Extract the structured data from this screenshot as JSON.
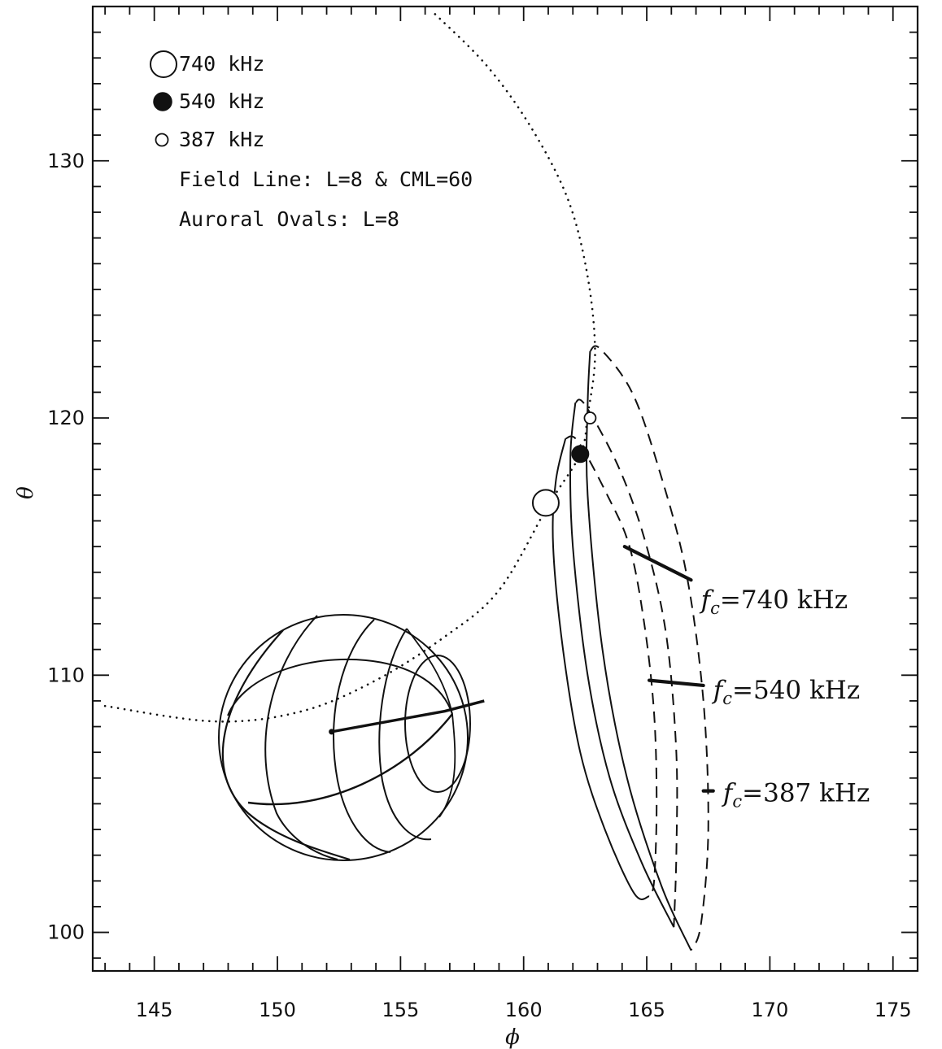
{
  "chart_data": {
    "type": "line",
    "title": "",
    "xlabel": "ϕ",
    "ylabel": "θ",
    "xlim": [
      142.5,
      176
    ],
    "ylim": [
      98.5,
      136
    ],
    "x_ticks": [
      145,
      150,
      155,
      160,
      165,
      170,
      175
    ],
    "y_ticks": [
      100,
      110,
      120,
      130
    ],
    "grid": false,
    "legend_position": "top-left",
    "legend": [
      {
        "marker": "large-open-circle",
        "label": "740 kHz"
      },
      {
        "marker": "filled-circle",
        "label": "540 kHz"
      },
      {
        "marker": "small-open-circle",
        "label": "387 kHz"
      }
    ],
    "notes": [
      "Field Line: L=8 & CML=60",
      "Auroral Ovals: L=8"
    ],
    "field_line": {
      "style": "dotted",
      "points": [
        [
          143,
          108.8
        ],
        [
          147.5,
          108.2
        ],
        [
          151,
          108.6
        ],
        [
          154,
          109.8
        ],
        [
          156.8,
          111.5
        ],
        [
          159,
          113.3
        ],
        [
          161,
          116.6
        ],
        [
          162.3,
          118.6
        ],
        [
          162.6,
          120.1
        ],
        [
          162.9,
          122.5
        ],
        [
          162.6,
          125.5
        ],
        [
          161.8,
          128.5
        ],
        [
          160.3,
          131.3
        ],
        [
          158.5,
          133.7
        ],
        [
          156.3,
          135.8
        ]
      ]
    },
    "markers": [
      {
        "freq": "740 kHz",
        "type": "large-open-circle",
        "x": 160.9,
        "y": 116.7
      },
      {
        "freq": "540 kHz",
        "type": "filled-circle",
        "x": 162.3,
        "y": 118.6
      },
      {
        "freq": "387 kHz",
        "type": "small-open-circle",
        "x": 162.7,
        "y": 120.0
      }
    ],
    "auroral_ovals": [
      {
        "label_prefix": "f",
        "label_sub": "c",
        "label_rest": "=740 kHz",
        "tip": [
          161.7,
          119.2
        ],
        "solid": [
          [
            161.7,
            119.2
          ],
          [
            161.3,
            117.5
          ],
          [
            161.2,
            115
          ],
          [
            161.6,
            111
          ],
          [
            162.3,
            107
          ],
          [
            163.3,
            104
          ],
          [
            164.5,
            101.5
          ],
          [
            165.1,
            101.4
          ]
        ],
        "dashed": [
          [
            162.2,
            119.1
          ],
          [
            163.4,
            117
          ],
          [
            164.3,
            115
          ],
          [
            164.9,
            112
          ],
          [
            165.3,
            108.5
          ],
          [
            165.4,
            105
          ],
          [
            165.3,
            102
          ],
          [
            165.1,
            101.4
          ]
        ],
        "bar": [
          [
            164.1,
            115.0
          ],
          [
            166.8,
            113.7
          ]
        ],
        "label_pos": [
          167.2,
          112.6
        ]
      },
      {
        "label_prefix": "f",
        "label_sub": "c",
        "label_rest": "=540 kHz",
        "tip": [
          162.1,
          120.6
        ],
        "solid": [
          [
            162.1,
            120.6
          ],
          [
            161.9,
            118.5
          ],
          [
            162.0,
            115
          ],
          [
            162.6,
            110
          ],
          [
            163.5,
            106
          ],
          [
            164.8,
            102.7
          ],
          [
            166.1,
            100.2
          ]
        ],
        "dashed": [
          [
            162.5,
            120.5
          ],
          [
            163.9,
            118
          ],
          [
            165,
            115
          ],
          [
            165.8,
            111.5
          ],
          [
            166.2,
            107
          ],
          [
            166.2,
            103
          ],
          [
            166.1,
            100.2
          ]
        ],
        "bar": [
          [
            165.1,
            109.8
          ],
          [
            167.3,
            109.6
          ]
        ],
        "label_pos": [
          167.7,
          109.1
        ]
      },
      {
        "label_prefix": "f",
        "label_sub": "c",
        "label_rest": "=387 kHz",
        "tip": [
          162.7,
          122.6
        ],
        "solid": [
          [
            162.7,
            122.6
          ],
          [
            162.6,
            120.5
          ],
          [
            162.6,
            117
          ],
          [
            163.2,
            111
          ],
          [
            164.2,
            106
          ],
          [
            165.6,
            101.8
          ],
          [
            166.8,
            99.3
          ]
        ],
        "dashed": [
          [
            163.1,
            122.7
          ],
          [
            164.4,
            121
          ],
          [
            165.5,
            118
          ],
          [
            166.6,
            114
          ],
          [
            167.3,
            109
          ],
          [
            167.5,
            104
          ],
          [
            167.2,
            100.3
          ],
          [
            166.8,
            99.3
          ]
        ],
        "bar": [
          [
            167.3,
            105.5
          ],
          [
            167.7,
            105.5
          ]
        ],
        "label_pos": [
          168.1,
          105.1
        ]
      }
    ],
    "planet": {
      "center": [
        152.7,
        108.3
      ],
      "radius_x": 4.8,
      "radius_y": 3.0,
      "pole": [
        156.8,
        108.6
      ],
      "field_spoke": [
        [
          152.2,
          107.8
        ],
        [
          156.8,
          108.6
        ],
        [
          158.4,
          109.0
        ]
      ]
    }
  }
}
